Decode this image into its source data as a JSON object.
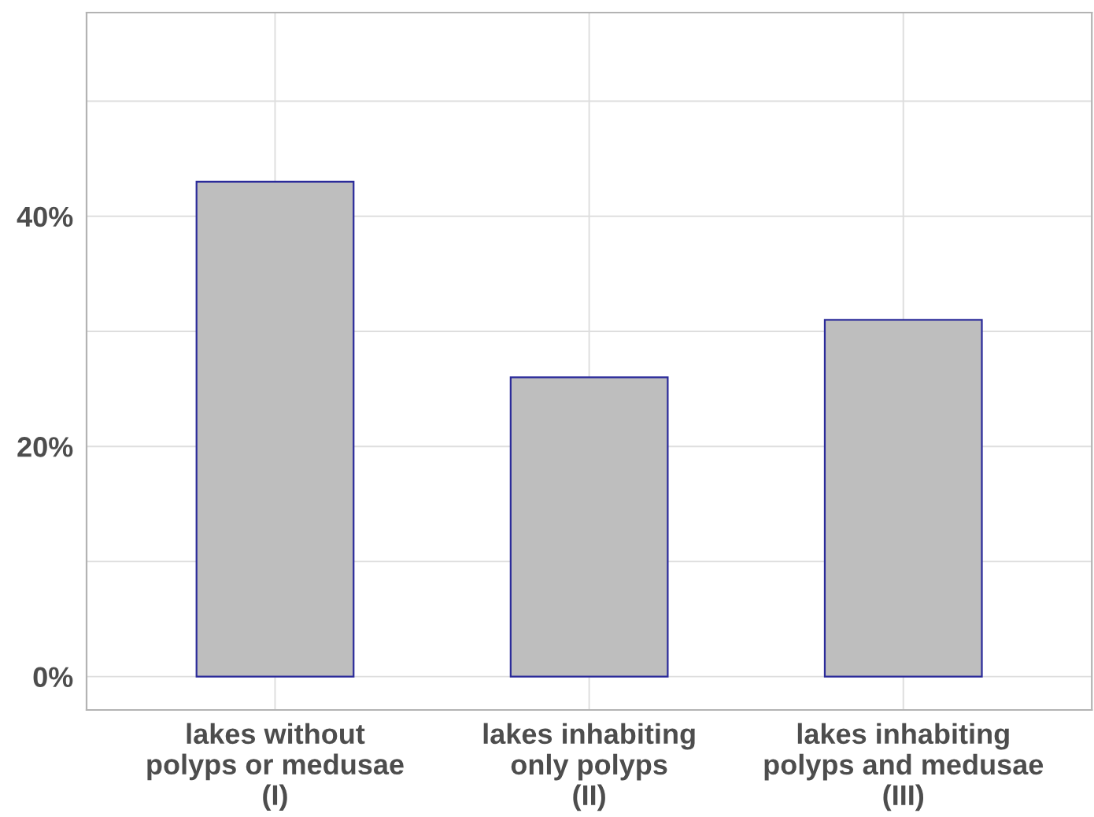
{
  "chart_data": {
    "type": "bar",
    "categories": [
      "lakes without\npolyps or medusae\n(I)",
      "lakes inhabiting\nonly polyps\n(II)",
      "lakes inhabiting\npolyps and medusae\n(III)"
    ],
    "values": [
      43,
      26,
      31
    ],
    "color": "#bebebe",
    "ylim": [
      -2.9,
      57.7
    ],
    "yticks": [
      {
        "value": 0,
        "label": "0%"
      },
      {
        "value": 10,
        "label": null
      },
      {
        "value": 20,
        "label": "20%"
      },
      {
        "value": 30,
        "label": null
      },
      {
        "value": 40,
        "label": "40%"
      },
      {
        "value": 50,
        "label": null
      }
    ],
    "grid": true
  }
}
